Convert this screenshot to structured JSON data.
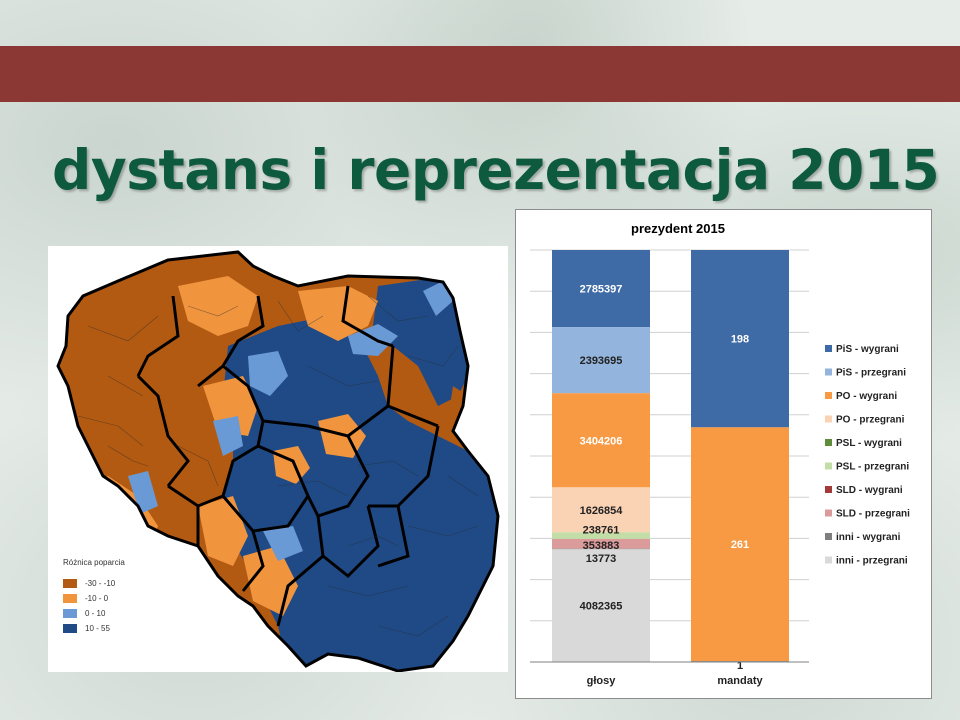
{
  "slide": {
    "title": "dystans i reprezentacja 2015"
  },
  "map": {
    "legend_title": "Różnica poparcia",
    "legend": [
      {
        "label": "-30 - -10",
        "color": "#b35a12"
      },
      {
        "label": "-10 - 0",
        "color": "#f0953e"
      },
      {
        "label": "0 - 10",
        "color": "#6a9ad6"
      },
      {
        "label": "10 - 55",
        "color": "#1f4a86"
      }
    ]
  },
  "chart_data": {
    "type": "bar",
    "stacked": true,
    "title": "prezydent 2015",
    "categories": [
      "głosy",
      "mandaty"
    ],
    "series": [
      {
        "name": "PiS - wygrani",
        "color": "#3e6aa6",
        "values": [
          2785397,
          198
        ],
        "labels": [
          "2785397",
          "198"
        ]
      },
      {
        "name": "PiS - przegrani",
        "color": "#93b4dc",
        "values": [
          2393695,
          0
        ],
        "labels": [
          "2393695",
          ""
        ]
      },
      {
        "name": "PO - wygrani",
        "color": "#f79a43",
        "values": [
          3404206,
          261
        ],
        "labels": [
          "3404206",
          "261"
        ]
      },
      {
        "name": "PO - przegrani",
        "color": "#fad3b5",
        "values": [
          1626854,
          0
        ],
        "labels": [
          "1626854",
          ""
        ]
      },
      {
        "name": "PSL - wygrani",
        "color": "#5f8d3a",
        "values": [
          0,
          0
        ],
        "labels": [
          "",
          ""
        ]
      },
      {
        "name": "PSL - przegrani",
        "color": "#c3dda6",
        "values": [
          238761,
          0
        ],
        "labels": [
          "238761",
          ""
        ]
      },
      {
        "name": "SLD - wygrani",
        "color": "#a23a3a",
        "values": [
          0,
          0
        ],
        "labels": [
          "",
          ""
        ]
      },
      {
        "name": "SLD - przegrani",
        "color": "#dc9b9b",
        "values": [
          353883,
          0
        ],
        "labels": [
          "353883",
          ""
        ]
      },
      {
        "name": "inni - wygrani",
        "color": "#7f7f7f",
        "values": [
          13773,
          1
        ],
        "labels": [
          "13773",
          "1"
        ]
      },
      {
        "name": "inni - przegrani",
        "color": "#d9d9d9",
        "values": [
          4082365,
          0
        ],
        "labels": [
          "4082365",
          ""
        ]
      }
    ],
    "legend_position": "right",
    "grid": true
  }
}
